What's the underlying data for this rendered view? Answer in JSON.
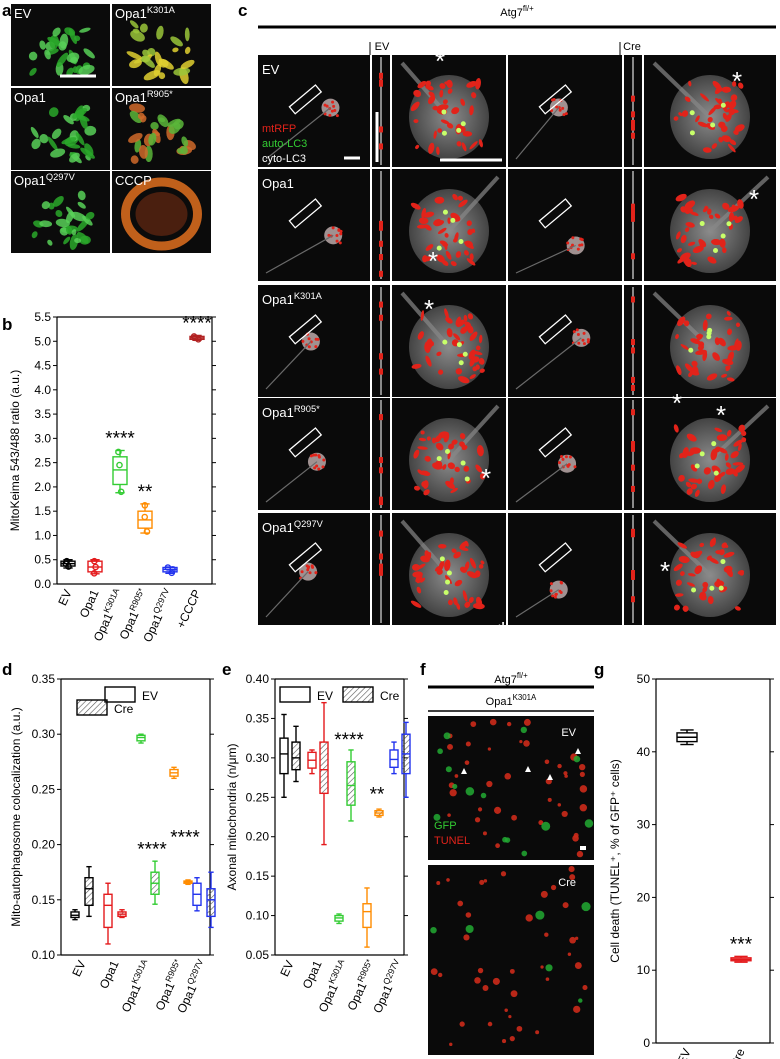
{
  "panels": {
    "a": {
      "letter": "a",
      "tiles": [
        {
          "label": "EV",
          "base": "Opa1",
          "sup": "",
          "tone": "green"
        },
        {
          "label": "Opa1",
          "base": "Opa1",
          "sup": "K301A",
          "tone": "yellow"
        },
        {
          "label": "Opa1",
          "base": "Opa1",
          "sup": "",
          "tone": "green"
        },
        {
          "label": "Opa1",
          "base": "Opa1",
          "sup": "R905*",
          "tone": "mixed"
        },
        {
          "label": "Opa1",
          "base": "Opa1",
          "sup": "Q297V",
          "tone": "green"
        },
        {
          "label": "CCCP",
          "base": "CCCP",
          "sup": "",
          "tone": "orange"
        }
      ]
    },
    "c": {
      "letter": "c",
      "genotype_base": "Atg7",
      "genotype_sup": "fl/+",
      "col_ev": "EV",
      "col_cre": "Cre",
      "legend": {
        "mt": "mtRFP",
        "auto": "auto-LC3",
        "cyto": "cyto-LC3"
      },
      "rows": [
        {
          "base": "EV",
          "sup": ""
        },
        {
          "base": "Opa1",
          "sup": ""
        },
        {
          "base": "Opa1",
          "sup": "K301A"
        },
        {
          "base": "Opa1",
          "sup": "R905*"
        },
        {
          "base": "Opa1",
          "sup": "Q297V"
        }
      ],
      "star": "*"
    },
    "f": {
      "letter": "f",
      "genotype_base": "Atg7",
      "genotype_sup": "fl/+",
      "construct_base": "Opa1",
      "construct_sup": "K301A",
      "ev": "EV",
      "cre": "Cre",
      "gfp": "GFP",
      "tunel": "TUNEL"
    }
  },
  "chart_data": [
    {
      "panel": "b",
      "type": "box",
      "ylabel": "MitoKeima 543/488 ratio (a.u.)",
      "ylim": [
        0,
        5.5
      ],
      "yticks": [
        0.0,
        0.5,
        1.0,
        1.5,
        2.0,
        2.5,
        3.0,
        3.5,
        4.0,
        4.5,
        5.0,
        5.5
      ],
      "categories": [
        {
          "base": "EV",
          "sup": "",
          "suffix": ""
        },
        {
          "base": "Opa1",
          "sup": "",
          "suffix": ""
        },
        {
          "base": "Opa1",
          "sup": "K301A",
          "suffix": ""
        },
        {
          "base": "Opa1",
          "sup": "R905*",
          "suffix": ""
        },
        {
          "base": "Opa1",
          "sup": "Q297V",
          "suffix": ""
        },
        {
          "base": "+CCCP",
          "sup": "",
          "suffix": ""
        }
      ],
      "colors": [
        "#000000",
        "#e41a1c",
        "#33cc33",
        "#ff8c00",
        "#2233ee",
        "#b22222"
      ],
      "boxes": [
        {
          "min": 0.33,
          "q1": 0.37,
          "median": 0.42,
          "q3": 0.47,
          "max": 0.5,
          "points": [
            0.36,
            0.42,
            0.47
          ],
          "sig": ""
        },
        {
          "min": 0.21,
          "q1": 0.25,
          "median": 0.35,
          "q3": 0.47,
          "max": 0.5,
          "points": [
            0.22,
            0.35,
            0.47
          ],
          "sig": ""
        },
        {
          "min": 1.88,
          "q1": 2.05,
          "median": 2.35,
          "q3": 2.62,
          "max": 2.75,
          "points": [
            1.9,
            2.45,
            2.72
          ],
          "sig": "****"
        },
        {
          "min": 1.05,
          "q1": 1.15,
          "median": 1.32,
          "q3": 1.5,
          "max": 1.65,
          "points": [
            1.08,
            1.38,
            1.62
          ],
          "sig": "**"
        },
        {
          "min": 0.22,
          "q1": 0.25,
          "median": 0.3,
          "q3": 0.34,
          "max": 0.35,
          "points": [
            0.23,
            0.3,
            0.34
          ],
          "sig": ""
        },
        {
          "min": 5.02,
          "q1": 5.04,
          "median": 5.07,
          "q3": 5.1,
          "max": 5.12,
          "points": [
            5.04,
            5.07,
            5.1
          ],
          "sig": "****"
        }
      ]
    },
    {
      "panel": "d",
      "type": "box",
      "ylabel": "Mito-autophagosome colocalization (a.u.)",
      "ylim": [
        0.1,
        0.35
      ],
      "yticks": [
        0.1,
        0.15,
        0.2,
        0.25,
        0.3,
        0.35
      ],
      "legend": [
        "EV",
        "Cre"
      ],
      "categories": [
        {
          "base": "EV",
          "sup": ""
        },
        {
          "base": "Opa1",
          "sup": ""
        },
        {
          "base": "Opa1",
          "sup": "K301A"
        },
        {
          "base": "Opa1",
          "sup": "R905*"
        },
        {
          "base": "Opa1",
          "sup": "Q297V"
        }
      ],
      "colors": [
        "#000000",
        "#e41a1c",
        "#33cc33",
        "#ff8c00",
        "#2233ee"
      ],
      "series": [
        {
          "name": "EV",
          "boxes": [
            {
              "min": 0.132,
              "q1": 0.134,
              "median": 0.136,
              "q3": 0.139,
              "max": 0.141
            },
            {
              "min": 0.11,
              "q1": 0.125,
              "median": 0.145,
              "q3": 0.155,
              "max": 0.165
            },
            {
              "min": 0.292,
              "q1": 0.294,
              "median": 0.297,
              "q3": 0.299,
              "max": 0.3
            },
            {
              "min": 0.26,
              "q1": 0.262,
              "median": 0.265,
              "q3": 0.268,
              "max": 0.27
            },
            {
              "min": 0.14,
              "q1": 0.145,
              "median": 0.155,
              "q3": 0.165,
              "max": 0.17
            }
          ]
        },
        {
          "name": "Cre",
          "boxes": [
            {
              "min": 0.135,
              "q1": 0.145,
              "median": 0.16,
              "q3": 0.17,
              "max": 0.18
            },
            {
              "min": 0.134,
              "q1": 0.135,
              "median": 0.137,
              "q3": 0.139,
              "max": 0.141
            },
            {
              "min": 0.146,
              "q1": 0.155,
              "median": 0.165,
              "q3": 0.175,
              "max": 0.185
            },
            {
              "min": 0.164,
              "q1": 0.165,
              "median": 0.166,
              "q3": 0.167,
              "max": 0.168
            },
            {
              "min": 0.125,
              "q1": 0.135,
              "median": 0.15,
              "q3": 0.16,
              "max": 0.175
            }
          ]
        }
      ],
      "annotations": [
        {
          "text": "****",
          "x_index": 2,
          "value": 0.19
        },
        {
          "text": "****",
          "x_index": 3,
          "value": 0.201
        }
      ]
    },
    {
      "panel": "e",
      "type": "box",
      "ylabel": "Axonal mitochondria (n/μm)",
      "ylim": [
        0.05,
        0.4
      ],
      "yticks": [
        0.05,
        0.1,
        0.15,
        0.2,
        0.25,
        0.3,
        0.35,
        0.4
      ],
      "legend": [
        "EV",
        "Cre"
      ],
      "categories": [
        {
          "base": "EV",
          "sup": ""
        },
        {
          "base": "Opa1",
          "sup": ""
        },
        {
          "base": "Opa1",
          "sup": "K301A"
        },
        {
          "base": "Opa1",
          "sup": "R905*"
        },
        {
          "base": "Opa1",
          "sup": "Q297V"
        }
      ],
      "colors": [
        "#000000",
        "#e41a1c",
        "#33cc33",
        "#ff8c00",
        "#2233ee"
      ],
      "series": [
        {
          "name": "EV",
          "boxes": [
            {
              "min": 0.25,
              "q1": 0.28,
              "median": 0.305,
              "q3": 0.325,
              "max": 0.355
            },
            {
              "min": 0.28,
              "q1": 0.287,
              "median": 0.297,
              "q3": 0.307,
              "max": 0.31
            },
            {
              "min": 0.09,
              "q1": 0.093,
              "median": 0.097,
              "q3": 0.1,
              "max": 0.102
            },
            {
              "min": 0.06,
              "q1": 0.085,
              "median": 0.105,
              "q3": 0.115,
              "max": 0.135
            },
            {
              "min": 0.28,
              "q1": 0.288,
              "median": 0.298,
              "q3": 0.31,
              "max": 0.32
            }
          ]
        },
        {
          "name": "Cre",
          "boxes": [
            {
              "min": 0.27,
              "q1": 0.285,
              "median": 0.3,
              "q3": 0.32,
              "max": 0.34
            },
            {
              "min": 0.19,
              "q1": 0.255,
              "median": 0.285,
              "q3": 0.32,
              "max": 0.37
            },
            {
              "min": 0.22,
              "q1": 0.24,
              "median": 0.265,
              "q3": 0.295,
              "max": 0.31
            },
            {
              "min": 0.225,
              "q1": 0.227,
              "median": 0.23,
              "q3": 0.233,
              "max": 0.235
            },
            {
              "min": 0.25,
              "q1": 0.28,
              "median": 0.305,
              "q3": 0.33,
              "max": 0.345
            }
          ]
        }
      ],
      "annotations": [
        {
          "text": "****",
          "x_index": 2,
          "value": 0.315
        },
        {
          "text": "**",
          "x_index": 3,
          "value": 0.246
        }
      ]
    },
    {
      "panel": "g",
      "type": "box",
      "ylabel": "Cell death (TUNEL⁺, % of GFP⁺ cells)",
      "ylim": [
        0,
        50
      ],
      "yticks": [
        0,
        10,
        20,
        30,
        40,
        50
      ],
      "categories": [
        {
          "base": "EV",
          "sup": ""
        },
        {
          "base": "Cre",
          "sup": ""
        }
      ],
      "colors": [
        "#000000",
        "#e41a1c"
      ],
      "boxes": [
        {
          "min": 41.0,
          "q1": 41.4,
          "median": 42.0,
          "q3": 42.6,
          "max": 43.0,
          "sig": ""
        },
        {
          "min": 11.1,
          "q1": 11.3,
          "median": 11.5,
          "q3": 11.7,
          "max": 11.9,
          "sig": "***"
        }
      ]
    }
  ]
}
